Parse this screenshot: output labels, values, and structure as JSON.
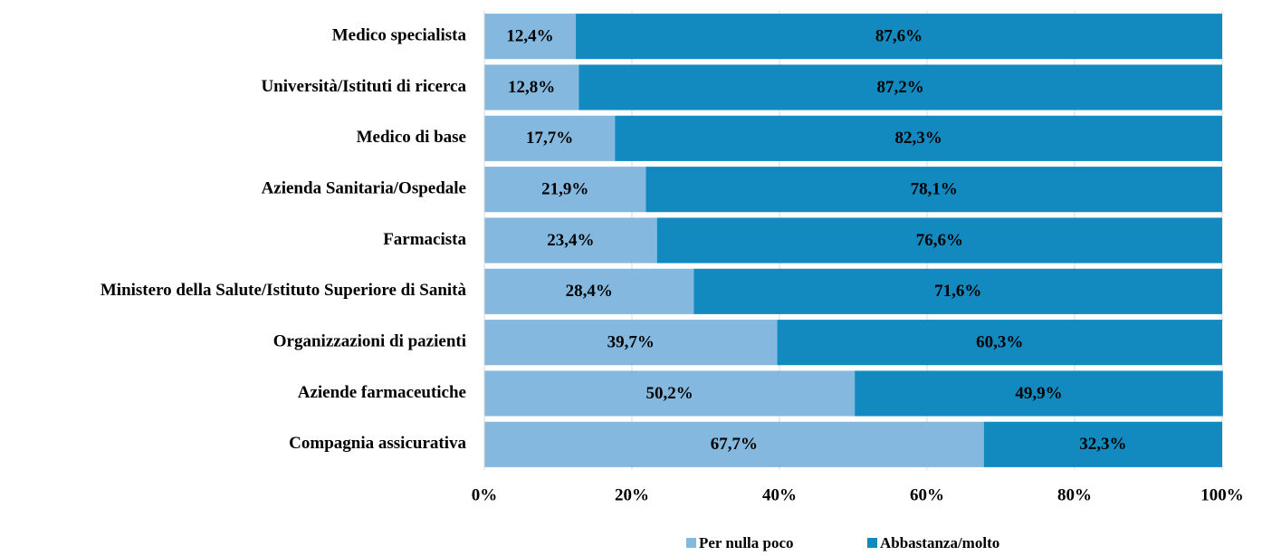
{
  "chart_data": {
    "type": "bar",
    "orientation": "horizontal",
    "stacked": true,
    "categories": [
      "Medico specialista",
      "Università/Istituti di ricerca",
      "Medico di base",
      "Azienda Sanitaria/Ospedale",
      "Farmacista",
      "Ministero della Salute/Istituto Superiore di Sanità",
      "Organizzazioni di pazienti",
      "Aziende farmaceutiche",
      "Compagnia assicurativa"
    ],
    "series": [
      {
        "name": "Per nulla poco",
        "color": "#85b8df",
        "values": [
          12.4,
          12.8,
          17.7,
          21.9,
          23.4,
          28.4,
          39.7,
          50.2,
          67.7
        ],
        "value_labels": [
          "12,4%",
          "12,8%",
          "17,7%",
          "21,9%",
          "23,4%",
          "28,4%",
          "39,7%",
          "50,2%",
          "67,7%"
        ]
      },
      {
        "name": "Abbastanza/molto",
        "color": "#1289bf",
        "values": [
          87.6,
          87.2,
          82.3,
          78.1,
          76.6,
          71.6,
          60.3,
          49.9,
          32.3
        ],
        "value_labels": [
          "87,6%",
          "87,2%",
          "82,3%",
          "78,1%",
          "76,6%",
          "71,6%",
          "60,3%",
          "49,9%",
          "32,3%"
        ]
      }
    ],
    "xlim": [
      0,
      100
    ],
    "xticks": [
      {
        "value": 0,
        "label": "0%"
      },
      {
        "value": 20,
        "label": "20%"
      },
      {
        "value": 40,
        "label": "40%"
      },
      {
        "value": 60,
        "label": "60%"
      },
      {
        "value": 80,
        "label": "80%"
      },
      {
        "value": 100,
        "label": "100%"
      }
    ],
    "grid": true,
    "legend": "bottom"
  }
}
